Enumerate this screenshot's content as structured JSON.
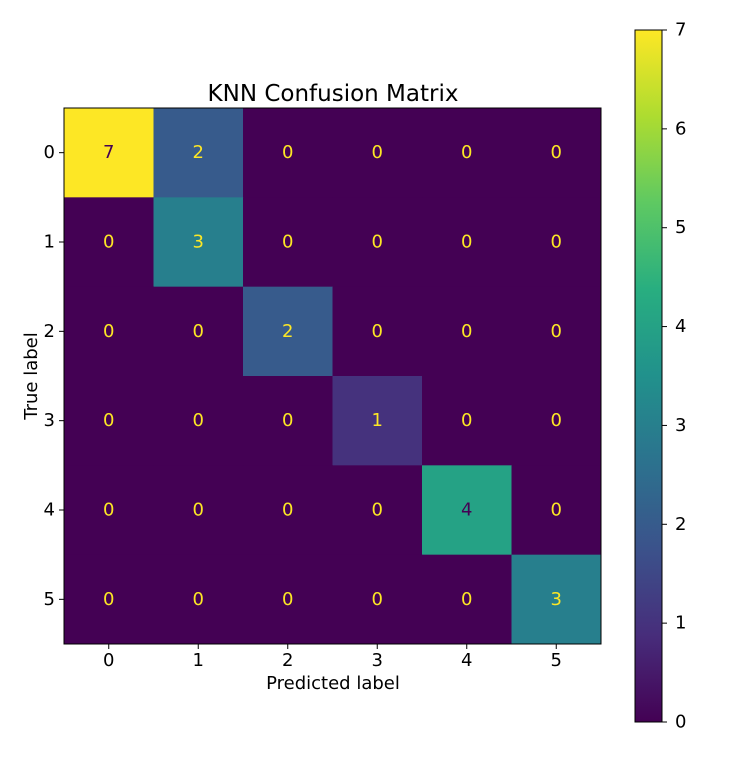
{
  "chart_data": {
    "type": "heatmap",
    "title": "KNN Confusion Matrix",
    "xlabel": "Predicted label",
    "ylabel": "True label",
    "x_categories": [
      "0",
      "1",
      "2",
      "3",
      "4",
      "5"
    ],
    "y_categories": [
      "0",
      "1",
      "2",
      "3",
      "4",
      "5"
    ],
    "matrix": [
      [
        7,
        2,
        0,
        0,
        0,
        0
      ],
      [
        0,
        3,
        0,
        0,
        0,
        0
      ],
      [
        0,
        0,
        2,
        0,
        0,
        0
      ],
      [
        0,
        0,
        0,
        1,
        0,
        0
      ],
      [
        0,
        0,
        0,
        0,
        4,
        0
      ],
      [
        0,
        0,
        0,
        0,
        0,
        3
      ]
    ],
    "colormap": "viridis",
    "vmin": 0,
    "vmax": 7,
    "colorbar_ticks": [
      0,
      1,
      2,
      3,
      4,
      5,
      6,
      7
    ],
    "colorbar_tick_labels": [
      "0",
      "1",
      "2",
      "3",
      "4",
      "5",
      "6",
      "7"
    ],
    "text_color_dark_cells": "#fde725",
    "text_color_bright_cells": "#440154"
  }
}
